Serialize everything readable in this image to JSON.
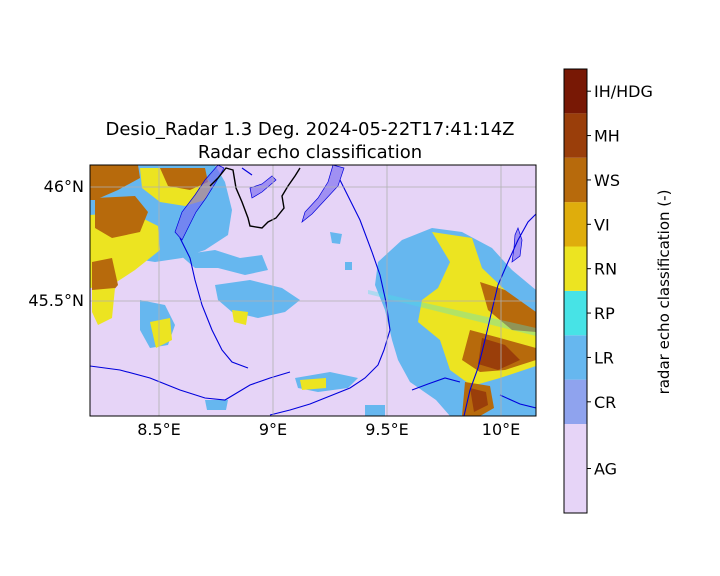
{
  "title": {
    "line1": "Desio_Radar 1.3 Deg. 2024-05-22T17:41:14Z",
    "line2": "Radar echo classification"
  },
  "map": {
    "background_class": "AG",
    "x_ticks": [
      "8.5°E",
      "9°E",
      "9.5°E",
      "10°E"
    ],
    "y_ticks": [
      "46°N",
      "45.5°N"
    ],
    "gridlines": true,
    "rivers_color": "#0000dd",
    "lakes_color": "#7b6cf0",
    "borders_color": "#000000"
  },
  "chart_data": {
    "type": "heatmap",
    "title": "Desio_Radar 1.3 Deg. 2024-05-22T17:41:14Z",
    "subtitle": "Radar echo classification",
    "x_tick_values": [
      8.5,
      9.0,
      9.5,
      10.0
    ],
    "y_tick_values": [
      46.0,
      45.5
    ],
    "colorbar": {
      "label": "radar echo classification (-)",
      "classes": [
        {
          "code": "AG",
          "color": "#e6d4f7"
        },
        {
          "code": "CR",
          "color": "#8fa3ee"
        },
        {
          "code": "LR",
          "color": "#66b7ef"
        },
        {
          "code": "RP",
          "color": "#47e3e6"
        },
        {
          "code": "RN",
          "color": "#ece421"
        },
        {
          "code": "VI",
          "color": "#dfad0c"
        },
        {
          "code": "WS",
          "color": "#b76a0c"
        },
        {
          "code": "MH",
          "color": "#9a3e0a"
        },
        {
          "code": "IH/HDG",
          "color": "#781805"
        }
      ]
    }
  }
}
